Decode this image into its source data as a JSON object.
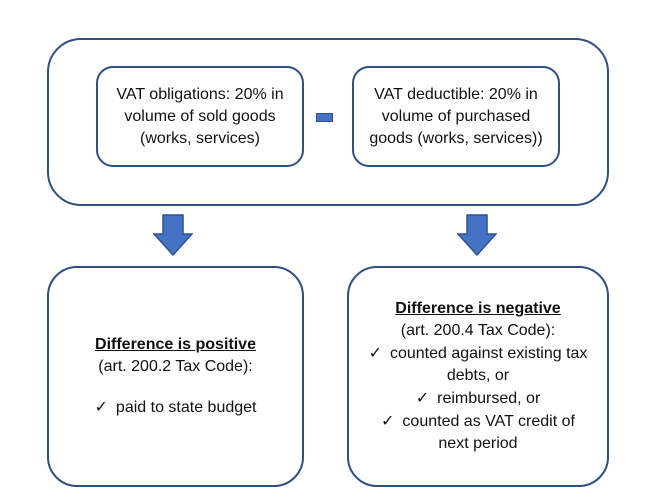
{
  "top": {
    "obligations_lines": [
      "VAT obligations: 20% in",
      "volume of sold goods",
      "(works, services)"
    ],
    "minus_symbol": "-",
    "deductible_lines": [
      "VAT deductible: 20% in",
      "volume of purchased",
      "goods (works, services))"
    ]
  },
  "positive": {
    "heading": "Difference is positive",
    "reference": "(art. 200.2 Tax Code):",
    "items": [
      "paid to state budget"
    ]
  },
  "negative": {
    "heading": "Difference is negative",
    "reference": "(art. 200.4 Tax Code):",
    "item1_lines": [
      "counted against existing tax",
      "debts, or"
    ],
    "item2": "reimbursed, or",
    "item3_lines": [
      "counted as VAT credit of",
      "next period"
    ]
  },
  "colors": {
    "arrow_fill": "#4472c4",
    "box_border": "#2f4f7f"
  },
  "icons": {
    "arrow": "down-arrow-icon",
    "bullet": "checkmark-icon"
  }
}
